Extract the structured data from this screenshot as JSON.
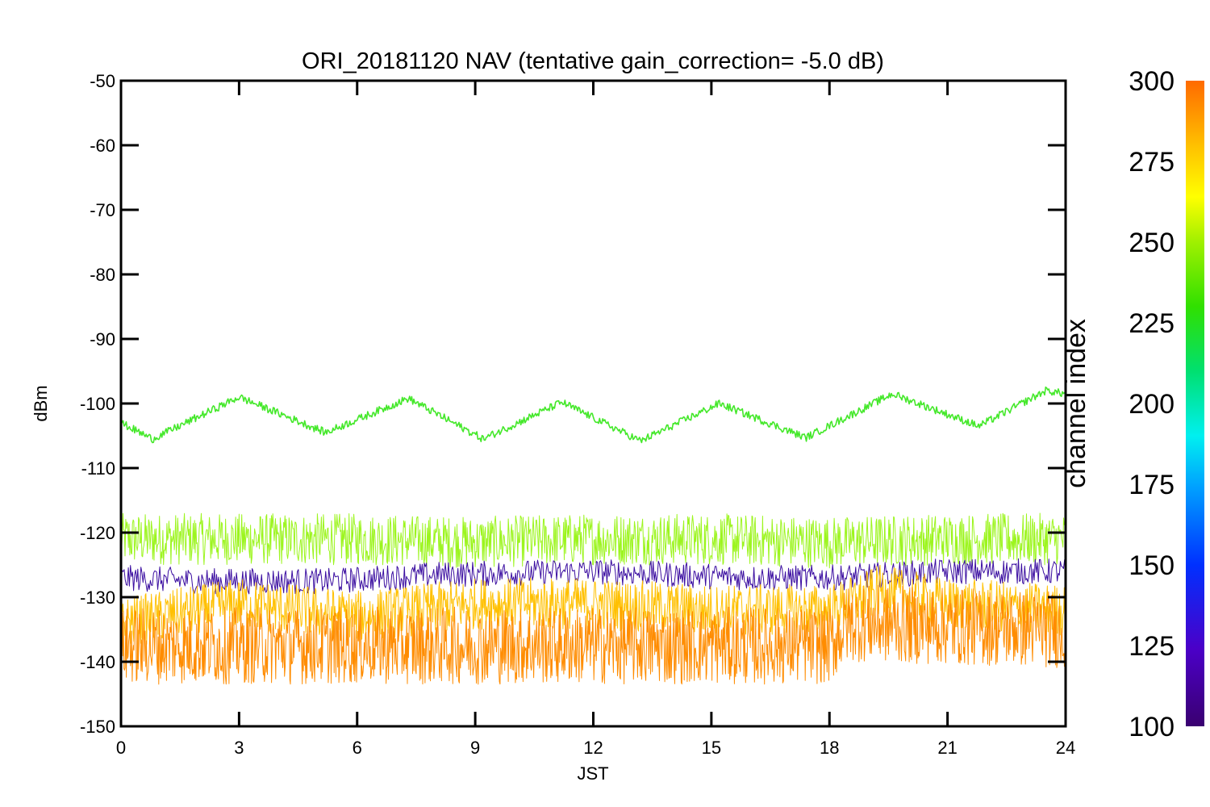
{
  "chart_data": {
    "type": "line",
    "title": "ORI_20181120 NAV (tentative gain_correction= -5.0 dB)",
    "xlabel": "JST",
    "ylabel": "dBm",
    "xlim": [
      0,
      24
    ],
    "ylim": [
      -150,
      -50
    ],
    "x_ticks": [
      "0",
      "3",
      "6",
      "9",
      "12",
      "15",
      "18",
      "21",
      "24"
    ],
    "y_ticks": [
      "-50",
      "-60",
      "-70",
      "-80",
      "-90",
      "-100",
      "-110",
      "-120",
      "-130",
      "-140",
      "-150"
    ],
    "grid": false,
    "colorbar": {
      "label": "channel index",
      "range": [
        100,
        300
      ],
      "ticks": [
        "100",
        "125",
        "150",
        "175",
        "200",
        "225",
        "250",
        "275",
        "300"
      ],
      "colormap": "rainbow"
    },
    "series": [
      {
        "color": "#44e82a",
        "x": [
          0,
          0.8,
          3,
          5.2,
          7.3,
          9.2,
          11.2,
          13.2,
          15.2,
          17.4,
          19.6,
          21.8,
          23.5,
          24
        ],
        "y": [
          -103,
          -105.5,
          -99,
          -104.5,
          -99.2,
          -105.5,
          -99.8,
          -105.8,
          -100,
          -105.3,
          -98.5,
          -103.5,
          -98,
          -98.5
        ]
      },
      {
        "color": "#9cf51e",
        "x": [
          0,
          3,
          6,
          9,
          12,
          15,
          18,
          21,
          24
        ],
        "y": [
          -121,
          -121,
          -121,
          -121.5,
          -121,
          -121,
          -121.5,
          -121,
          -121
        ]
      },
      {
        "color": "#3a0da0",
        "x": [
          0,
          2,
          4,
          5.3,
          8,
          12,
          16,
          18,
          21,
          24
        ],
        "y": [
          -127,
          -127.5,
          -127.5,
          -127.5,
          -126.5,
          -126,
          -127,
          -127,
          -126,
          -126
        ]
      },
      {
        "color": "#ffc000",
        "x": [
          0,
          3,
          6,
          9,
          12,
          15,
          18,
          19.3,
          21,
          24
        ],
        "y": [
          -134,
          -131,
          -133,
          -131,
          -131,
          -132,
          -132,
          -129,
          -131,
          -132
        ]
      },
      {
        "color": "#ff8c00",
        "x": [
          0,
          3,
          6,
          9,
          12,
          15,
          18,
          18.5,
          21,
          24
        ],
        "y": [
          -137.5,
          -137.5,
          -137.5,
          -137.5,
          -137.5,
          -137.5,
          -137.5,
          -134,
          -134.5,
          -135
        ]
      }
    ]
  }
}
